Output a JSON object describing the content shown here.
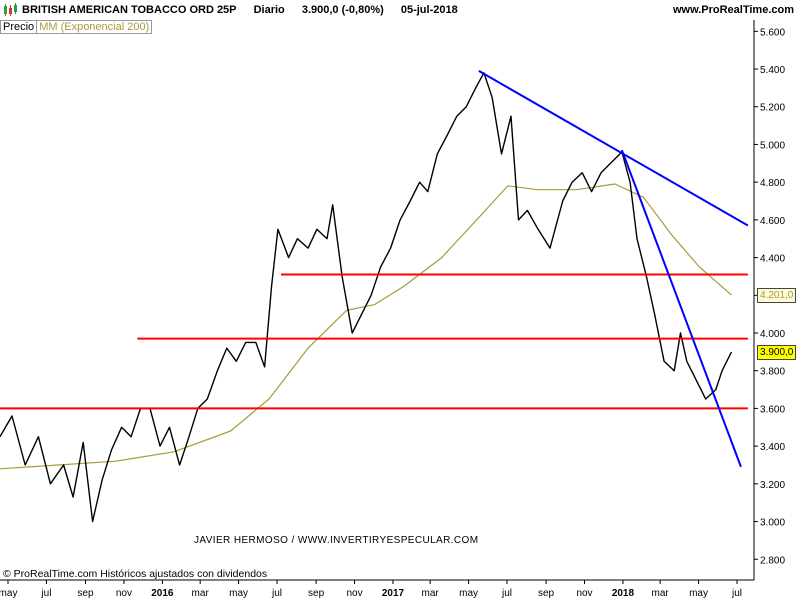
{
  "header": {
    "instrument": "BRITISH AMERICAN TOBACCO ORD 25P",
    "period": "Diario",
    "last": "3.900,0 (-0,80%)",
    "date": "05-jul-2018",
    "site": "www.ProRealTime.com"
  },
  "legend": {
    "price": "Precio",
    "ma": "MM (Exponencial 200)"
  },
  "footer": "© ProRealTime.com  Históricos ajustados con dividendos",
  "watermark": "JAVIER HERMOSO / WWW.INVERTIRYESPECULAR.COM",
  "colors": {
    "price": "#000000",
    "ma": "#a89a3a",
    "support": "#ff0000",
    "trend": "#0000ff",
    "ma_tag_bg": "#fffbd8",
    "price_tag_bg": "#ffff00"
  },
  "chart_data": {
    "type": "line",
    "x_start": "2015-05",
    "x_end": "2018-07",
    "x_tick_labels": [
      "may",
      "jul",
      "sep",
      "nov",
      "2016",
      "mar",
      "may",
      "jul",
      "sep",
      "nov",
      "2017",
      "mar",
      "may",
      "jul",
      "sep",
      "nov",
      "2018",
      "mar",
      "may",
      "jul"
    ],
    "x_tick_bold": [
      "2016",
      "2017",
      "2018"
    ],
    "y_ticks": [
      2800,
      3000,
      3200,
      3400,
      3600,
      3800,
      4000,
      4200,
      4400,
      4600,
      4800,
      5000,
      5200,
      5400,
      5600
    ],
    "y_tick_labels": [
      "2.800",
      "3.000",
      "3.200",
      "3.400",
      "3.600",
      "3.800",
      "4.000",
      "4.200",
      "4.400",
      "4.600",
      "4.800",
      "5.000",
      "5.200",
      "5.400",
      "5.600"
    ],
    "ylim": [
      2690,
      5660
    ],
    "series": [
      {
        "kind": "price",
        "points": [
          [
            "2015-05-01",
            3450
          ],
          [
            "2015-05-20",
            3560
          ],
          [
            "2015-06-10",
            3300
          ],
          [
            "2015-07-01",
            3450
          ],
          [
            "2015-07-20",
            3200
          ],
          [
            "2015-08-10",
            3300
          ],
          [
            "2015-08-25",
            3130
          ],
          [
            "2015-09-10",
            3420
          ],
          [
            "2015-09-25",
            3000
          ],
          [
            "2015-10-10",
            3220
          ],
          [
            "2015-10-25",
            3380
          ],
          [
            "2015-11-10",
            3500
          ],
          [
            "2015-11-25",
            3450
          ],
          [
            "2015-12-10",
            3600
          ],
          [
            "2015-12-25",
            3600
          ],
          [
            "2016-01-10",
            3400
          ],
          [
            "2016-01-25",
            3500
          ],
          [
            "2016-02-10",
            3300
          ],
          [
            "2016-02-25",
            3450
          ],
          [
            "2016-03-10",
            3600
          ],
          [
            "2016-03-25",
            3650
          ],
          [
            "2016-04-10",
            3800
          ],
          [
            "2016-04-25",
            3920
          ],
          [
            "2016-05-10",
            3850
          ],
          [
            "2016-05-25",
            3950
          ],
          [
            "2016-06-10",
            3950
          ],
          [
            "2016-06-24",
            3820
          ],
          [
            "2016-07-05",
            4250
          ],
          [
            "2016-07-15",
            4550
          ],
          [
            "2016-08-01",
            4400
          ],
          [
            "2016-08-15",
            4500
          ],
          [
            "2016-09-01",
            4450
          ],
          [
            "2016-09-15",
            4550
          ],
          [
            "2016-10-01",
            4500
          ],
          [
            "2016-10-10",
            4680
          ],
          [
            "2016-10-25",
            4300
          ],
          [
            "2016-11-10",
            4000
          ],
          [
            "2016-11-25",
            4100
          ],
          [
            "2016-12-10",
            4200
          ],
          [
            "2016-12-25",
            4350
          ],
          [
            "2017-01-10",
            4450
          ],
          [
            "2017-01-25",
            4600
          ],
          [
            "2017-02-10",
            4700
          ],
          [
            "2017-02-25",
            4800
          ],
          [
            "2017-03-10",
            4750
          ],
          [
            "2017-03-25",
            4950
          ],
          [
            "2017-04-10",
            5050
          ],
          [
            "2017-04-25",
            5150
          ],
          [
            "2017-05-10",
            5200
          ],
          [
            "2017-05-25",
            5300
          ],
          [
            "2017-06-07",
            5380
          ],
          [
            "2017-06-20",
            5250
          ],
          [
            "2017-07-05",
            4950
          ],
          [
            "2017-07-20",
            5150
          ],
          [
            "2017-08-01",
            4600
          ],
          [
            "2017-08-15",
            4650
          ],
          [
            "2017-09-01",
            4550
          ],
          [
            "2017-09-20",
            4450
          ],
          [
            "2017-10-10",
            4700
          ],
          [
            "2017-10-25",
            4800
          ],
          [
            "2017-11-10",
            4850
          ],
          [
            "2017-11-25",
            4750
          ],
          [
            "2017-12-10",
            4850
          ],
          [
            "2017-12-25",
            4900
          ],
          [
            "2018-01-12",
            4960
          ],
          [
            "2018-01-25",
            4800
          ],
          [
            "2018-02-05",
            4500
          ],
          [
            "2018-02-20",
            4300
          ],
          [
            "2018-03-05",
            4100
          ],
          [
            "2018-03-20",
            3850
          ],
          [
            "2018-04-05",
            3800
          ],
          [
            "2018-04-15",
            4000
          ],
          [
            "2018-04-25",
            3850
          ],
          [
            "2018-05-10",
            3750
          ],
          [
            "2018-05-25",
            3650
          ],
          [
            "2018-06-10",
            3700
          ],
          [
            "2018-06-20",
            3800
          ],
          [
            "2018-07-05",
            3900
          ]
        ]
      },
      {
        "kind": "ma",
        "points": [
          [
            "2015-05-01",
            3280
          ],
          [
            "2015-08-01",
            3300
          ],
          [
            "2015-11-01",
            3320
          ],
          [
            "2016-02-01",
            3370
          ],
          [
            "2016-05-01",
            3480
          ],
          [
            "2016-07-01",
            3650
          ],
          [
            "2016-09-01",
            3920
          ],
          [
            "2016-11-01",
            4120
          ],
          [
            "2016-12-15",
            4150
          ],
          [
            "2017-02-01",
            4250
          ],
          [
            "2017-04-01",
            4400
          ],
          [
            "2017-06-01",
            4620
          ],
          [
            "2017-07-15",
            4780
          ],
          [
            "2017-09-01",
            4760
          ],
          [
            "2017-11-01",
            4760
          ],
          [
            "2018-01-01",
            4790
          ],
          [
            "2018-02-15",
            4720
          ],
          [
            "2018-04-01",
            4520
          ],
          [
            "2018-05-15",
            4350
          ],
          [
            "2018-07-05",
            4201
          ]
        ]
      }
    ],
    "lines": [
      {
        "kind": "support",
        "from": [
          "2016-07-20",
          4310
        ],
        "to": [
          "2018-07-31",
          4310
        ]
      },
      {
        "kind": "support",
        "from": [
          "2015-12-05",
          3970
        ],
        "to": [
          "2018-07-31",
          3970
        ]
      },
      {
        "kind": "support",
        "from": [
          "2015-05-01",
          3600
        ],
        "to": [
          "2018-07-31",
          3600
        ]
      },
      {
        "kind": "trend",
        "from": [
          "2017-05-30",
          5390
        ],
        "to": [
          "2018-07-31",
          4570
        ]
      },
      {
        "kind": "trend",
        "from": [
          "2018-01-12",
          4970
        ],
        "to": [
          "2018-07-20",
          3290
        ]
      }
    ],
    "tags": [
      {
        "label": "4.201,0",
        "value": 4201,
        "kind": "ma"
      },
      {
        "label": "3.900,0",
        "value": 3900,
        "kind": "price"
      }
    ]
  }
}
